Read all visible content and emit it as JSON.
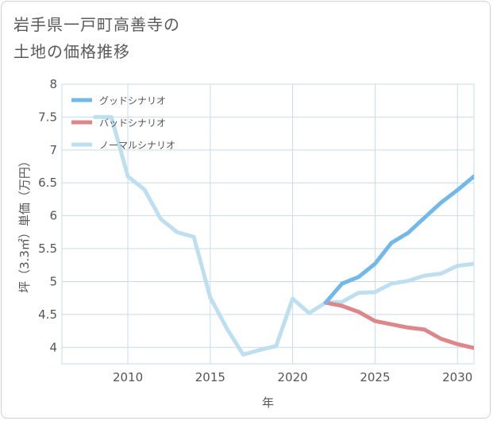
{
  "title_lines": [
    "岩手県一戸町高善寺の",
    "土地の価格推移"
  ],
  "chart_data": {
    "type": "line",
    "xlabel": "年",
    "ylabel": "坪（3.3㎡）単価（万円）",
    "xlim": [
      2006,
      2031
    ],
    "ylim": [
      3.75,
      8
    ],
    "x_ticks": [
      2010,
      2015,
      2020,
      2025,
      2030
    ],
    "y_ticks": [
      4,
      4.5,
      5,
      5.5,
      6,
      6.5,
      7,
      7.5,
      8
    ],
    "y_tick_labels": [
      "4",
      "4.5",
      "5",
      "5.5",
      "6",
      "6.5",
      "7",
      "7.5",
      "8"
    ],
    "grid": true,
    "legend_position": "top-left",
    "series": [
      {
        "name": "グッドシナリオ",
        "color": "#72b9ea",
        "x": [
          2022,
          2023,
          2024,
          2025,
          2026,
          2027,
          2028,
          2029,
          2030,
          2031
        ],
        "values": [
          4.68,
          4.97,
          5.07,
          5.27,
          5.59,
          5.74,
          5.97,
          6.2,
          6.39,
          6.6
        ]
      },
      {
        "name": "バッドシナリオ",
        "color": "#de878a",
        "x": [
          2022,
          2023,
          2024,
          2025,
          2026,
          2027,
          2028,
          2029,
          2030,
          2031
        ],
        "values": [
          4.68,
          4.63,
          4.54,
          4.4,
          4.35,
          4.3,
          4.27,
          4.13,
          4.05,
          3.99
        ]
      },
      {
        "name": "ノーマルシナリオ",
        "color": "#bddff0",
        "x": [
          2008,
          2009,
          2010,
          2011,
          2012,
          2013,
          2014,
          2015,
          2016,
          2017,
          2018,
          2019,
          2020,
          2021,
          2022,
          2023,
          2024,
          2025,
          2026,
          2027,
          2028,
          2029,
          2030,
          2031
        ],
        "values": [
          7.5,
          7.5,
          6.6,
          6.4,
          5.95,
          5.75,
          5.68,
          4.76,
          4.29,
          3.89,
          3.96,
          4.02,
          4.74,
          4.52,
          4.68,
          4.69,
          4.83,
          4.84,
          4.97,
          5.01,
          5.09,
          5.12,
          5.24,
          5.27
        ]
      }
    ]
  }
}
